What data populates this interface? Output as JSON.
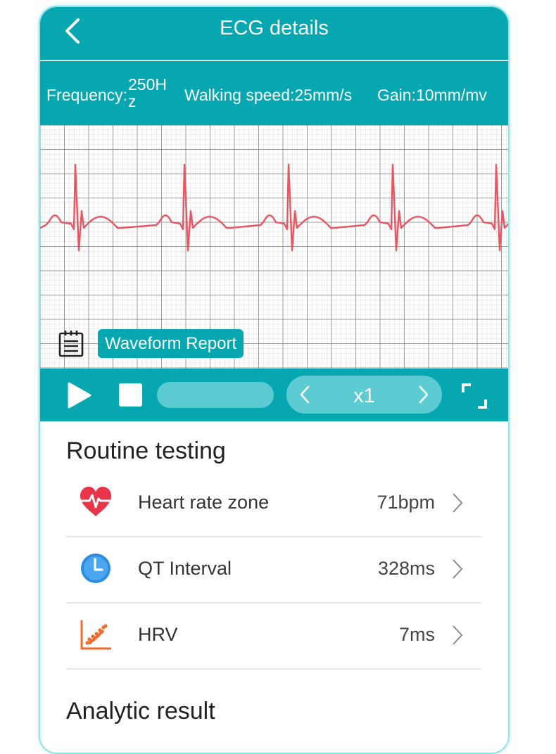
{
  "header": {
    "title": "ECG details",
    "back_icon": "chevron-left-icon"
  },
  "params": {
    "frequency_label": "Frequency:",
    "frequency_value": "250Hz",
    "walking_speed": "Walking speed:25mm/s",
    "gain": "Gain:10mm/mv"
  },
  "ecg": {
    "report_button": "Waveform Report",
    "report_icon": "report-clipboard-icon",
    "grid_color": "#8c8c8c",
    "trace_color": "#e95560"
  },
  "controls": {
    "play_icon": "play-icon",
    "stop_icon": "stop-icon",
    "speed": "x1",
    "fullscreen_icon": "fullscreen-icon"
  },
  "routine": {
    "title": "Routine testing",
    "items": [
      {
        "label": "Heart rate zone",
        "value": "71bpm",
        "icon": "heart-rate-icon"
      },
      {
        "label": "QT Interval",
        "value": "328ms",
        "icon": "clock-icon"
      },
      {
        "label": "HRV",
        "value": "7ms",
        "icon": "hrv-chart-icon"
      }
    ]
  },
  "analytic": {
    "title": "Analytic result"
  },
  "colors": {
    "accent": "#06a7b1",
    "accent_light": "#5ccbd2",
    "heart": "#e8354a",
    "clock": "#2f8de0",
    "hrv": "#f06b2a"
  }
}
